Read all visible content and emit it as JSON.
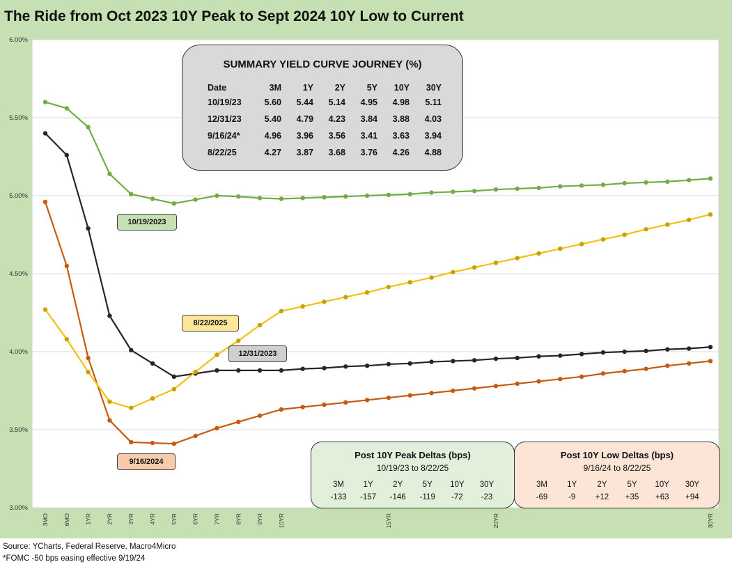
{
  "title": "The Ride from Oct 2023 10Y Peak to Sept 2024 10Y Low to Current",
  "colors": {
    "oct2023": "#70ad47",
    "dec2023": "#262626",
    "sep2024": "#c55a11",
    "aug2025": "#f2c012",
    "frame": "#c6e0b4"
  },
  "chart_data": {
    "type": "line",
    "x_tenors_years": [
      0.25,
      0.5,
      1,
      2,
      3,
      4,
      5,
      6,
      7,
      8,
      9,
      10,
      11,
      12,
      13,
      14,
      15,
      16,
      17,
      18,
      19,
      20,
      21,
      22,
      23,
      24,
      25,
      26,
      27,
      28,
      29,
      30
    ],
    "x_tick_labels": [
      {
        "label": "3MO",
        "tenor": 0.25
      },
      {
        "label": "6MO",
        "tenor": 0.5
      },
      {
        "label": "1YR",
        "tenor": 1
      },
      {
        "label": "2YR",
        "tenor": 2
      },
      {
        "label": "3YR",
        "tenor": 3
      },
      {
        "label": "4YR",
        "tenor": 4
      },
      {
        "label": "5YR",
        "tenor": 5
      },
      {
        "label": "6YR",
        "tenor": 6
      },
      {
        "label": "7YR",
        "tenor": 7
      },
      {
        "label": "8YR",
        "tenor": 8
      },
      {
        "label": "9YR",
        "tenor": 9
      },
      {
        "label": "10YR",
        "tenor": 10
      },
      {
        "label": "15YR",
        "tenor": 15
      },
      {
        "label": "20YR",
        "tenor": 20
      },
      {
        "label": "30YR",
        "tenor": 30
      }
    ],
    "ylim": [
      3.0,
      6.0
    ],
    "y_ticks": [
      "3.00%",
      "3.50%",
      "4.00%",
      "4.50%",
      "5.00%",
      "5.50%",
      "6.00%"
    ],
    "grid": "horizontal",
    "series": [
      {
        "name": "10/19/2023",
        "color": "#70ad47",
        "values": [
          5.6,
          5.56,
          5.44,
          5.14,
          5.01,
          4.98,
          4.95,
          4.975,
          5.0,
          4.995,
          4.985,
          4.98,
          4.985,
          4.99,
          4.995,
          5.0,
          5.005,
          5.01,
          5.02,
          5.025,
          5.03,
          5.04,
          5.045,
          5.05,
          5.06,
          5.065,
          5.07,
          5.08,
          5.085,
          5.09,
          5.1,
          5.11
        ]
      },
      {
        "name": "12/31/2023",
        "color": "#262626",
        "values": [
          5.4,
          5.26,
          4.79,
          4.23,
          4.01,
          3.925,
          3.84,
          3.86,
          3.88,
          3.88,
          3.88,
          3.88,
          3.89,
          3.895,
          3.905,
          3.91,
          3.92,
          3.925,
          3.935,
          3.94,
          3.945,
          3.955,
          3.96,
          3.97,
          3.975,
          3.985,
          3.995,
          4.0,
          4.005,
          4.015,
          4.02,
          4.03
        ]
      },
      {
        "name": "9/16/2024",
        "color": "#c55a11",
        "values": [
          4.96,
          4.55,
          3.96,
          3.56,
          3.42,
          3.415,
          3.41,
          3.46,
          3.51,
          3.55,
          3.59,
          3.63,
          3.645,
          3.66,
          3.675,
          3.69,
          3.705,
          3.72,
          3.735,
          3.75,
          3.765,
          3.78,
          3.795,
          3.81,
          3.825,
          3.84,
          3.86,
          3.875,
          3.89,
          3.91,
          3.925,
          3.94
        ]
      },
      {
        "name": "8/22/2025",
        "color": "#f2c012",
        "values": [
          4.27,
          4.08,
          3.87,
          3.68,
          3.64,
          3.7,
          3.76,
          3.87,
          3.98,
          4.07,
          4.17,
          4.26,
          4.29,
          4.32,
          4.35,
          4.38,
          4.415,
          4.445,
          4.475,
          4.51,
          4.54,
          4.57,
          4.6,
          4.63,
          4.66,
          4.69,
          4.72,
          4.75,
          4.785,
          4.815,
          4.845,
          4.88
        ]
      }
    ]
  },
  "series_labels": {
    "oct2023": "10/19/2023",
    "dec2023": "12/31/2023",
    "sep2024": "9/16/2024",
    "aug2025": "8/22/2025"
  },
  "summary": {
    "title": "SUMMARY YIELD CURVE JOURNEY (%)",
    "headers": [
      "Date",
      "3M",
      "1Y",
      "2Y",
      "5Y",
      "10Y",
      "30Y"
    ],
    "rows": [
      [
        "10/19/23",
        "5.60",
        "5.44",
        "5.14",
        "4.95",
        "4.98",
        "5.11"
      ],
      [
        "12/31/23",
        "5.40",
        "4.79",
        "4.23",
        "3.84",
        "3.88",
        "4.03"
      ],
      [
        "9/16/24*",
        "4.96",
        "3.96",
        "3.56",
        "3.41",
        "3.63",
        "3.94"
      ],
      [
        "8/22/25",
        "4.27",
        "3.87",
        "3.68",
        "3.76",
        "4.26",
        "4.88"
      ]
    ]
  },
  "peak_deltas": {
    "title": "Post 10Y Peak Deltas (bps)",
    "subtitle": "10/19/23 to 8/22/25",
    "headers": [
      "3M",
      "1Y",
      "2Y",
      "5Y",
      "10Y",
      "30Y"
    ],
    "values": [
      "-133",
      "-157",
      "-146",
      "-119",
      "-72",
      "-23"
    ]
  },
  "low_deltas": {
    "title": "Post 10Y Low Deltas (bps)",
    "subtitle": "9/16/24 to 8/22/25",
    "headers": [
      "3M",
      "1Y",
      "2Y",
      "5Y",
      "10Y",
      "30Y"
    ],
    "values": [
      "-69",
      "-9",
      "+12",
      "+35",
      "+63",
      "+94"
    ]
  },
  "footer": {
    "source": "Source: YCharts, Federal Reserve, Macro4Micro",
    "note": "*FOMC -50 bps easing effective  9/19/24"
  }
}
